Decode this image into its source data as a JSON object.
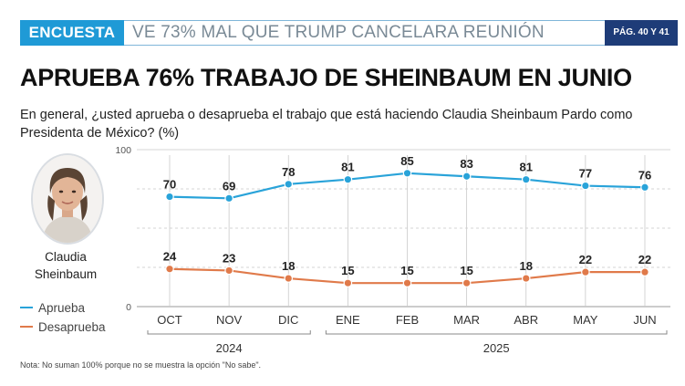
{
  "header": {
    "tag": "ENCUESTA",
    "headline": "VE 73% MAL QUE TRUMP CANCELARA REUNIÓN",
    "pages": "PÁG. 40 Y 41"
  },
  "title": "APRUEBA 76% TRABAJO DE SHEINBAUM EN JUNIO",
  "question": "En general, ¿usted aprueba o desaprueba el trabajo que está haciendo Claudia Sheinbaum Pardo como Presidenta de México? (%)",
  "person": {
    "first": "Claudia",
    "last": "Sheinbaum"
  },
  "note": "Nota: No suman 100% porque no se muestra la opción \"No sabe\".",
  "colors": {
    "aprueba": "#29a3d9",
    "desaprueba": "#e07a4a",
    "accent": "#1f9ad6",
    "navy": "#1e3c78"
  },
  "icons": {
    "avatar": "person-portrait-icon"
  },
  "chart_data": {
    "type": "line",
    "categories": [
      "OCT",
      "NOV",
      "DIC",
      "ENE",
      "FEB",
      "MAR",
      "ABR",
      "MAY",
      "JUN"
    ],
    "groups": [
      {
        "label": "2024",
        "from": 0,
        "to": 2
      },
      {
        "label": "2025",
        "from": 3,
        "to": 8
      }
    ],
    "series": [
      {
        "name": "Aprueba",
        "values": [
          70,
          69,
          78,
          81,
          85,
          83,
          81,
          77,
          76
        ]
      },
      {
        "name": "Desaprueba",
        "values": [
          24,
          23,
          18,
          15,
          15,
          15,
          18,
          22,
          22
        ]
      }
    ],
    "ylim": [
      0,
      100
    ],
    "yticks": [
      "0",
      "100"
    ],
    "grid": true,
    "legend_position": "left"
  }
}
